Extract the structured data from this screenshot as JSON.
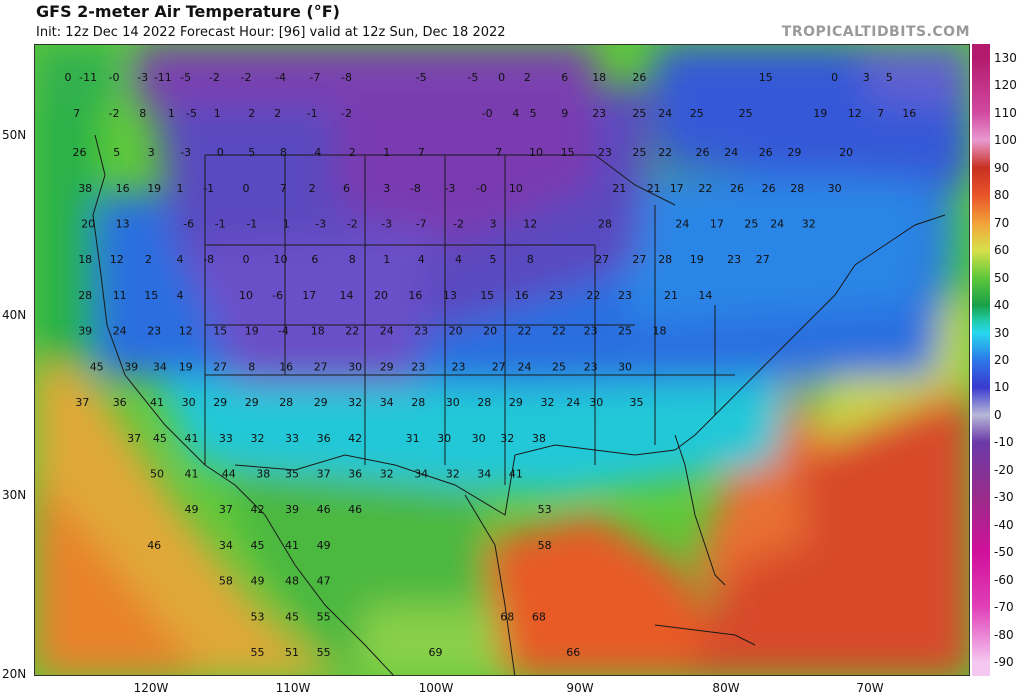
{
  "header": {
    "title": "GFS 2-meter Air Temperature (°F)",
    "subtitle": "Init: 12z Dec 14 2022   Forecast Hour: [96]   valid at 12z Sun, Dec 18 2022",
    "brand": "TROPICALTIDBITS.COM"
  },
  "axes": {
    "lat_labels": [
      "50N",
      "40N",
      "30N",
      "20N"
    ],
    "lon_labels": [
      "120W",
      "110W",
      "100W",
      "90W",
      "80W",
      "70W"
    ]
  },
  "colorbar": {
    "ticks": [
      "130",
      "120",
      "110",
      "100",
      "90",
      "80",
      "70",
      "60",
      "50",
      "40",
      "30",
      "20",
      "10",
      "0",
      "-10",
      "-20",
      "-30",
      "-40",
      "-50",
      "-60",
      "-70",
      "-80",
      "-90"
    ],
    "stops": [
      {
        "v": 130,
        "c": "#b31a6e"
      },
      {
        "v": 110,
        "c": "#d14aa0"
      },
      {
        "v": 100,
        "c": "#e99ad0"
      },
      {
        "v": 90,
        "c": "#c83020"
      },
      {
        "v": 80,
        "c": "#e8542a"
      },
      {
        "v": 70,
        "c": "#f2a23a"
      },
      {
        "v": 60,
        "c": "#d8e04a"
      },
      {
        "v": 50,
        "c": "#5ec83a"
      },
      {
        "v": 40,
        "c": "#18a048"
      },
      {
        "v": 35,
        "c": "#1fc8a0"
      },
      {
        "v": 30,
        "c": "#28d8f0"
      },
      {
        "v": 20,
        "c": "#2c78e8"
      },
      {
        "v": 10,
        "c": "#3a3ad0"
      },
      {
        "v": 0,
        "c": "#b8b8d8"
      },
      {
        "v": -10,
        "c": "#6a3aa8"
      },
      {
        "v": -30,
        "c": "#9a2c8a"
      },
      {
        "v": -50,
        "c": "#d0109a"
      },
      {
        "v": -70,
        "c": "#e040b8"
      },
      {
        "v": -90,
        "c": "#f4c8f0"
      }
    ]
  },
  "map_values": [
    {
      "t": "0",
      "lon": -125.2,
      "lat": 53.6
    },
    {
      "t": "-11",
      "lon": -123.8,
      "lat": 53.6
    },
    {
      "t": "-0",
      "lon": -122.0,
      "lat": 53.6
    },
    {
      "t": "-3",
      "lon": -120.0,
      "lat": 53.6
    },
    {
      "t": "-11",
      "lon": -118.6,
      "lat": 53.6
    },
    {
      "t": "-5",
      "lon": -117.0,
      "lat": 53.6
    },
    {
      "t": "-2",
      "lon": -115.0,
      "lat": 53.6
    },
    {
      "t": "-2",
      "lon": -112.8,
      "lat": 53.6
    },
    {
      "t": "-4",
      "lon": -110.4,
      "lat": 53.6
    },
    {
      "t": "-7",
      "lon": -108.0,
      "lat": 53.6
    },
    {
      "t": "-8",
      "lon": -105.8,
      "lat": 53.6
    },
    {
      "t": "-5",
      "lon": -100.6,
      "lat": 53.6
    },
    {
      "t": "-5",
      "lon": -97.0,
      "lat": 53.6
    },
    {
      "t": "0",
      "lon": -95.0,
      "lat": 53.6
    },
    {
      "t": "2",
      "lon": -93.2,
      "lat": 53.6
    },
    {
      "t": "6",
      "lon": -90.6,
      "lat": 53.6
    },
    {
      "t": "18",
      "lon": -88.2,
      "lat": 53.6
    },
    {
      "t": "26",
      "lon": -85.4,
      "lat": 53.6
    },
    {
      "t": "15",
      "lon": -76.6,
      "lat": 53.6
    },
    {
      "t": "0",
      "lon": -71.8,
      "lat": 53.6
    },
    {
      "t": "3",
      "lon": -69.6,
      "lat": 53.6
    },
    {
      "t": "5",
      "lon": -68.0,
      "lat": 53.6
    },
    {
      "t": "7",
      "lon": -124.6,
      "lat": 51.6
    },
    {
      "t": "-2",
      "lon": -122.0,
      "lat": 51.6
    },
    {
      "t": "8",
      "lon": -120.0,
      "lat": 51.6
    },
    {
      "t": "1",
      "lon": -118.0,
      "lat": 51.6
    },
    {
      "t": "-5",
      "lon": -116.6,
      "lat": 51.6
    },
    {
      "t": "1",
      "lon": -114.8,
      "lat": 51.6
    },
    {
      "t": "2",
      "lon": -112.4,
      "lat": 51.6
    },
    {
      "t": "2",
      "lon": -110.6,
      "lat": 51.6
    },
    {
      "t": "-1",
      "lon": -108.2,
      "lat": 51.6
    },
    {
      "t": "-2",
      "lon": -105.8,
      "lat": 51.6
    },
    {
      "t": "-0",
      "lon": -96.0,
      "lat": 51.6
    },
    {
      "t": "4",
      "lon": -94.0,
      "lat": 51.6
    },
    {
      "t": "5",
      "lon": -92.8,
      "lat": 51.6
    },
    {
      "t": "9",
      "lon": -90.6,
      "lat": 51.6
    },
    {
      "t": "23",
      "lon": -88.2,
      "lat": 51.6
    },
    {
      "t": "25",
      "lon": -85.4,
      "lat": 51.6
    },
    {
      "t": "24",
      "lon": -83.6,
      "lat": 51.6
    },
    {
      "t": "25",
      "lon": -81.4,
      "lat": 51.6
    },
    {
      "t": "25",
      "lon": -78.0,
      "lat": 51.6
    },
    {
      "t": "19",
      "lon": -72.8,
      "lat": 51.6
    },
    {
      "t": "12",
      "lon": -70.4,
      "lat": 51.6
    },
    {
      "t": "7",
      "lon": -68.6,
      "lat": 51.6
    },
    {
      "t": "16",
      "lon": -66.6,
      "lat": 51.6
    },
    {
      "t": "26",
      "lon": -124.4,
      "lat": 49.4
    },
    {
      "t": "5",
      "lon": -121.8,
      "lat": 49.4
    },
    {
      "t": "3",
      "lon": -119.4,
      "lat": 49.4
    },
    {
      "t": "-3",
      "lon": -117.0,
      "lat": 49.4
    },
    {
      "t": "0",
      "lon": -114.6,
      "lat": 49.4
    },
    {
      "t": "5",
      "lon": -112.4,
      "lat": 49.4
    },
    {
      "t": "8",
      "lon": -110.2,
      "lat": 49.4
    },
    {
      "t": "4",
      "lon": -107.8,
      "lat": 49.4
    },
    {
      "t": "2",
      "lon": -105.4,
      "lat": 49.4
    },
    {
      "t": "1",
      "lon": -103.0,
      "lat": 49.4
    },
    {
      "t": "7",
      "lon": -100.6,
      "lat": 49.4
    },
    {
      "t": "7",
      "lon": -95.2,
      "lat": 49.4
    },
    {
      "t": "10",
      "lon": -92.6,
      "lat": 49.4
    },
    {
      "t": "15",
      "lon": -90.4,
      "lat": 49.4
    },
    {
      "t": "23",
      "lon": -87.8,
      "lat": 49.4
    },
    {
      "t": "25",
      "lon": -85.4,
      "lat": 49.4
    },
    {
      "t": "22",
      "lon": -83.6,
      "lat": 49.4
    },
    {
      "t": "26",
      "lon": -81.0,
      "lat": 49.4
    },
    {
      "t": "24",
      "lon": -79.0,
      "lat": 49.4
    },
    {
      "t": "26",
      "lon": -76.6,
      "lat": 49.4
    },
    {
      "t": "29",
      "lon": -74.6,
      "lat": 49.4
    },
    {
      "t": "20",
      "lon": -71.0,
      "lat": 49.4
    },
    {
      "t": "38",
      "lon": -124.0,
      "lat": 47.4
    },
    {
      "t": "16",
      "lon": -121.4,
      "lat": 47.4
    },
    {
      "t": "19",
      "lon": -119.2,
      "lat": 47.4
    },
    {
      "t": "1",
      "lon": -117.4,
      "lat": 47.4
    },
    {
      "t": "-1",
      "lon": -115.4,
      "lat": 47.4
    },
    {
      "t": "0",
      "lon": -112.8,
      "lat": 47.4
    },
    {
      "t": "7",
      "lon": -110.2,
      "lat": 47.4
    },
    {
      "t": "2",
      "lon": -108.2,
      "lat": 47.4
    },
    {
      "t": "6",
      "lon": -105.8,
      "lat": 47.4
    },
    {
      "t": "3",
      "lon": -103.0,
      "lat": 47.4
    },
    {
      "t": "-8",
      "lon": -101.0,
      "lat": 47.4
    },
    {
      "t": "-3",
      "lon": -98.6,
      "lat": 47.4
    },
    {
      "t": "-0",
      "lon": -96.4,
      "lat": 47.4
    },
    {
      "t": "10",
      "lon": -94.0,
      "lat": 47.4
    },
    {
      "t": "21",
      "lon": -86.8,
      "lat": 47.4
    },
    {
      "t": "21",
      "lon": -84.4,
      "lat": 47.4
    },
    {
      "t": "17",
      "lon": -82.8,
      "lat": 47.4
    },
    {
      "t": "22",
      "lon": -80.8,
      "lat": 47.4
    },
    {
      "t": "26",
      "lon": -78.6,
      "lat": 47.4
    },
    {
      "t": "26",
      "lon": -76.4,
      "lat": 47.4
    },
    {
      "t": "28",
      "lon": -74.4,
      "lat": 47.4
    },
    {
      "t": "30",
      "lon": -71.8,
      "lat": 47.4
    },
    {
      "t": "20",
      "lon": -123.8,
      "lat": 45.4
    },
    {
      "t": "13",
      "lon": -121.4,
      "lat": 45.4
    },
    {
      "t": "-6",
      "lon": -116.8,
      "lat": 45.4
    },
    {
      "t": "-1",
      "lon": -114.6,
      "lat": 45.4
    },
    {
      "t": "-1",
      "lon": -112.4,
      "lat": 45.4
    },
    {
      "t": "1",
      "lon": -110.0,
      "lat": 45.4
    },
    {
      "t": "-3",
      "lon": -107.6,
      "lat": 45.4
    },
    {
      "t": "-2",
      "lon": -105.4,
      "lat": 45.4
    },
    {
      "t": "-3",
      "lon": -103.0,
      "lat": 45.4
    },
    {
      "t": "-7",
      "lon": -100.6,
      "lat": 45.4
    },
    {
      "t": "-2",
      "lon": -98.0,
      "lat": 45.4
    },
    {
      "t": "3",
      "lon": -95.6,
      "lat": 45.4
    },
    {
      "t": "12",
      "lon": -93.0,
      "lat": 45.4
    },
    {
      "t": "28",
      "lon": -87.8,
      "lat": 45.4
    },
    {
      "t": "24",
      "lon": -82.4,
      "lat": 45.4
    },
    {
      "t": "17",
      "lon": -80.0,
      "lat": 45.4
    },
    {
      "t": "25",
      "lon": -77.6,
      "lat": 45.4
    },
    {
      "t": "24",
      "lon": -75.8,
      "lat": 45.4
    },
    {
      "t": "32",
      "lon": -73.6,
      "lat": 45.4
    },
    {
      "t": "18",
      "lon": -124.0,
      "lat": 43.4
    },
    {
      "t": "12",
      "lon": -121.8,
      "lat": 43.4
    },
    {
      "t": "2",
      "lon": -119.6,
      "lat": 43.4
    },
    {
      "t": "4",
      "lon": -117.4,
      "lat": 43.4
    },
    {
      "t": "-8",
      "lon": -115.4,
      "lat": 43.4
    },
    {
      "t": "0",
      "lon": -112.8,
      "lat": 43.4
    },
    {
      "t": "10",
      "lon": -110.4,
      "lat": 43.4
    },
    {
      "t": "6",
      "lon": -108.0,
      "lat": 43.4
    },
    {
      "t": "8",
      "lon": -105.4,
      "lat": 43.4
    },
    {
      "t": "1",
      "lon": -103.0,
      "lat": 43.4
    },
    {
      "t": "4",
      "lon": -100.6,
      "lat": 43.4
    },
    {
      "t": "4",
      "lon": -98.0,
      "lat": 43.4
    },
    {
      "t": "5",
      "lon": -95.6,
      "lat": 43.4
    },
    {
      "t": "8",
      "lon": -93.0,
      "lat": 43.4
    },
    {
      "t": "27",
      "lon": -88.0,
      "lat": 43.4
    },
    {
      "t": "27",
      "lon": -85.4,
      "lat": 43.4
    },
    {
      "t": "28",
      "lon": -83.6,
      "lat": 43.4
    },
    {
      "t": "19",
      "lon": -81.4,
      "lat": 43.4
    },
    {
      "t": "23",
      "lon": -78.8,
      "lat": 43.4
    },
    {
      "t": "27",
      "lon": -76.8,
      "lat": 43.4
    },
    {
      "t": "28",
      "lon": -124.0,
      "lat": 41.4
    },
    {
      "t": "11",
      "lon": -121.6,
      "lat": 41.4
    },
    {
      "t": "15",
      "lon": -119.4,
      "lat": 41.4
    },
    {
      "t": "4",
      "lon": -117.4,
      "lat": 41.4
    },
    {
      "t": "10",
      "lon": -112.8,
      "lat": 41.4
    },
    {
      "t": "-6",
      "lon": -110.6,
      "lat": 41.4
    },
    {
      "t": "17",
      "lon": -108.4,
      "lat": 41.4
    },
    {
      "t": "14",
      "lon": -105.8,
      "lat": 41.4
    },
    {
      "t": "20",
      "lon": -103.4,
      "lat": 41.4
    },
    {
      "t": "16",
      "lon": -101.0,
      "lat": 41.4
    },
    {
      "t": "13",
      "lon": -98.6,
      "lat": 41.4
    },
    {
      "t": "15",
      "lon": -96.0,
      "lat": 41.4
    },
    {
      "t": "16",
      "lon": -93.6,
      "lat": 41.4
    },
    {
      "t": "23",
      "lon": -91.2,
      "lat": 41.4
    },
    {
      "t": "22",
      "lon": -88.6,
      "lat": 41.4
    },
    {
      "t": "23",
      "lon": -86.4,
      "lat": 41.4
    },
    {
      "t": "21",
      "lon": -83.2,
      "lat": 41.4
    },
    {
      "t": "14",
      "lon": -80.8,
      "lat": 41.4
    },
    {
      "t": "39",
      "lon": -124.0,
      "lat": 39.4
    },
    {
      "t": "24",
      "lon": -121.6,
      "lat": 39.4
    },
    {
      "t": "23",
      "lon": -119.2,
      "lat": 39.4
    },
    {
      "t": "12",
      "lon": -117.0,
      "lat": 39.4
    },
    {
      "t": "15",
      "lon": -114.6,
      "lat": 39.4
    },
    {
      "t": "19",
      "lon": -112.4,
      "lat": 39.4
    },
    {
      "t": "-4",
      "lon": -110.2,
      "lat": 39.4
    },
    {
      "t": "18",
      "lon": -107.8,
      "lat": 39.4
    },
    {
      "t": "22",
      "lon": -105.4,
      "lat": 39.4
    },
    {
      "t": "24",
      "lon": -103.0,
      "lat": 39.4
    },
    {
      "t": "23",
      "lon": -100.6,
      "lat": 39.4
    },
    {
      "t": "20",
      "lon": -98.2,
      "lat": 39.4
    },
    {
      "t": "20",
      "lon": -95.8,
      "lat": 39.4
    },
    {
      "t": "22",
      "lon": -93.4,
      "lat": 39.4
    },
    {
      "t": "22",
      "lon": -91.0,
      "lat": 39.4
    },
    {
      "t": "23",
      "lon": -88.8,
      "lat": 39.4
    },
    {
      "t": "25",
      "lon": -86.4,
      "lat": 39.4
    },
    {
      "t": "18",
      "lon": -84.0,
      "lat": 39.4
    },
    {
      "t": "45",
      "lon": -123.2,
      "lat": 37.4
    },
    {
      "t": "39",
      "lon": -120.8,
      "lat": 37.4
    },
    {
      "t": "34",
      "lon": -118.8,
      "lat": 37.4
    },
    {
      "t": "19",
      "lon": -117.0,
      "lat": 37.4
    },
    {
      "t": "27",
      "lon": -114.6,
      "lat": 37.4
    },
    {
      "t": "8",
      "lon": -112.4,
      "lat": 37.4
    },
    {
      "t": "16",
      "lon": -110.0,
      "lat": 37.4
    },
    {
      "t": "27",
      "lon": -107.6,
      "lat": 37.4
    },
    {
      "t": "30",
      "lon": -105.2,
      "lat": 37.4
    },
    {
      "t": "29",
      "lon": -103.0,
      "lat": 37.4
    },
    {
      "t": "23",
      "lon": -100.8,
      "lat": 37.4
    },
    {
      "t": "23",
      "lon": -98.0,
      "lat": 37.4
    },
    {
      "t": "27",
      "lon": -95.2,
      "lat": 37.4
    },
    {
      "t": "24",
      "lon": -93.4,
      "lat": 37.4
    },
    {
      "t": "25",
      "lon": -91.0,
      "lat": 37.4
    },
    {
      "t": "23",
      "lon": -88.8,
      "lat": 37.4
    },
    {
      "t": "30",
      "lon": -86.4,
      "lat": 37.4
    },
    {
      "t": "37",
      "lon": -124.2,
      "lat": 35.4
    },
    {
      "t": "36",
      "lon": -121.6,
      "lat": 35.4
    },
    {
      "t": "41",
      "lon": -119.0,
      "lat": 35.4
    },
    {
      "t": "30",
      "lon": -116.8,
      "lat": 35.4
    },
    {
      "t": "29",
      "lon": -114.6,
      "lat": 35.4
    },
    {
      "t": "29",
      "lon": -112.4,
      "lat": 35.4
    },
    {
      "t": "28",
      "lon": -110.0,
      "lat": 35.4
    },
    {
      "t": "29",
      "lon": -107.6,
      "lat": 35.4
    },
    {
      "t": "32",
      "lon": -105.2,
      "lat": 35.4
    },
    {
      "t": "34",
      "lon": -103.0,
      "lat": 35.4
    },
    {
      "t": "28",
      "lon": -100.8,
      "lat": 35.4
    },
    {
      "t": "30",
      "lon": -98.4,
      "lat": 35.4
    },
    {
      "t": "28",
      "lon": -96.2,
      "lat": 35.4
    },
    {
      "t": "29",
      "lon": -94.0,
      "lat": 35.4
    },
    {
      "t": "32",
      "lon": -91.8,
      "lat": 35.4
    },
    {
      "t": "24",
      "lon": -90.0,
      "lat": 35.4
    },
    {
      "t": "30",
      "lon": -88.4,
      "lat": 35.4
    },
    {
      "t": "35",
      "lon": -85.6,
      "lat": 35.4
    },
    {
      "t": "37",
      "lon": -120.6,
      "lat": 33.4
    },
    {
      "t": "45",
      "lon": -118.8,
      "lat": 33.4
    },
    {
      "t": "41",
      "lon": -116.6,
      "lat": 33.4
    },
    {
      "t": "33",
      "lon": -114.2,
      "lat": 33.4
    },
    {
      "t": "32",
      "lon": -112.0,
      "lat": 33.4
    },
    {
      "t": "33",
      "lon": -109.6,
      "lat": 33.4
    },
    {
      "t": "36",
      "lon": -107.4,
      "lat": 33.4
    },
    {
      "t": "42",
      "lon": -105.2,
      "lat": 33.4
    },
    {
      "t": "31",
      "lon": -101.2,
      "lat": 33.4
    },
    {
      "t": "30",
      "lon": -99.0,
      "lat": 33.4
    },
    {
      "t": "30",
      "lon": -96.6,
      "lat": 33.4
    },
    {
      "t": "32",
      "lon": -94.6,
      "lat": 33.4
    },
    {
      "t": "38",
      "lon": -92.4,
      "lat": 33.4
    },
    {
      "t": "50",
      "lon": -119.0,
      "lat": 31.4
    },
    {
      "t": "41",
      "lon": -116.6,
      "lat": 31.4
    },
    {
      "t": "44",
      "lon": -114.0,
      "lat": 31.4
    },
    {
      "t": "38",
      "lon": -111.6,
      "lat": 31.4
    },
    {
      "t": "35",
      "lon": -109.6,
      "lat": 31.4
    },
    {
      "t": "37",
      "lon": -107.4,
      "lat": 31.4
    },
    {
      "t": "36",
      "lon": -105.2,
      "lat": 31.4
    },
    {
      "t": "32",
      "lon": -103.0,
      "lat": 31.4
    },
    {
      "t": "34",
      "lon": -100.6,
      "lat": 31.4
    },
    {
      "t": "32",
      "lon": -98.4,
      "lat": 31.4
    },
    {
      "t": "34",
      "lon": -96.2,
      "lat": 31.4
    },
    {
      "t": "41",
      "lon": -94.0,
      "lat": 31.4
    },
    {
      "t": "49",
      "lon": -116.6,
      "lat": 29.4
    },
    {
      "t": "37",
      "lon": -114.2,
      "lat": 29.4
    },
    {
      "t": "42",
      "lon": -112.0,
      "lat": 29.4
    },
    {
      "t": "39",
      "lon": -109.6,
      "lat": 29.4
    },
    {
      "t": "46",
      "lon": -107.4,
      "lat": 29.4
    },
    {
      "t": "46",
      "lon": -105.2,
      "lat": 29.4
    },
    {
      "t": "53",
      "lon": -92.0,
      "lat": 29.4
    },
    {
      "t": "46",
      "lon": -119.2,
      "lat": 27.4
    },
    {
      "t": "34",
      "lon": -114.2,
      "lat": 27.4
    },
    {
      "t": "45",
      "lon": -112.0,
      "lat": 27.4
    },
    {
      "t": "41",
      "lon": -109.6,
      "lat": 27.4
    },
    {
      "t": "49",
      "lon": -107.4,
      "lat": 27.4
    },
    {
      "t": "58",
      "lon": -92.0,
      "lat": 27.4
    },
    {
      "t": "58",
      "lon": -114.2,
      "lat": 25.4
    },
    {
      "t": "49",
      "lon": -112.0,
      "lat": 25.4
    },
    {
      "t": "48",
      "lon": -109.6,
      "lat": 25.4
    },
    {
      "t": "47",
      "lon": -107.4,
      "lat": 25.4
    },
    {
      "t": "53",
      "lon": -112.0,
      "lat": 23.4
    },
    {
      "t": "45",
      "lon": -109.6,
      "lat": 23.4
    },
    {
      "t": "55",
      "lon": -107.4,
      "lat": 23.4
    },
    {
      "t": "68",
      "lon": -94.6,
      "lat": 23.4
    },
    {
      "t": "68",
      "lon": -92.4,
      "lat": 23.4
    },
    {
      "t": "55",
      "lon": -112.0,
      "lat": 21.4
    },
    {
      "t": "51",
      "lon": -109.6,
      "lat": 21.4
    },
    {
      "t": "55",
      "lon": -107.4,
      "lat": 21.4
    },
    {
      "t": "69",
      "lon": -99.6,
      "lat": 21.4
    },
    {
      "t": "66",
      "lon": -90.0,
      "lat": 21.4
    }
  ]
}
